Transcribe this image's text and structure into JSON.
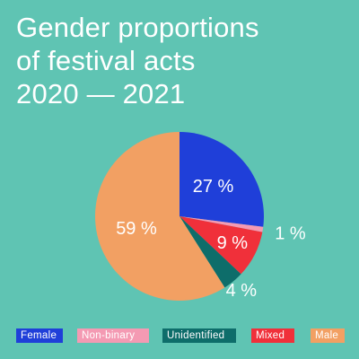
{
  "title_lines": [
    "Gender proportions",
    "of festival acts",
    "2020 — 2021"
  ],
  "chart_data": {
    "type": "pie",
    "title": "Gender proportions of festival acts 2020 — 2021",
    "slices": [
      {
        "label": "Female",
        "value": 27,
        "display": "27 %",
        "color": "#1f3fd9"
      },
      {
        "label": "Non-binary",
        "value": 1,
        "display": "1 %",
        "color": "#f49ab3"
      },
      {
        "label": "Mixed",
        "value": 9,
        "display": "9 %",
        "color": "#f0303a"
      },
      {
        "label": "Unidentified",
        "value": 4,
        "display": "4 %",
        "color": "#0e6d6a"
      },
      {
        "label": "Male",
        "value": 59,
        "display": "59 %",
        "color": "#f2a063"
      }
    ],
    "legend": [
      {
        "label": "Female",
        "color": "#1f3fd9"
      },
      {
        "label": "Non-binary",
        "color": "#f49ab3"
      },
      {
        "label": "Unidentified",
        "color": "#0e6d6a"
      },
      {
        "label": "Mixed",
        "color": "#f0303a"
      },
      {
        "label": "Male",
        "color": "#f2a063"
      }
    ],
    "legend_position": "bottom"
  }
}
